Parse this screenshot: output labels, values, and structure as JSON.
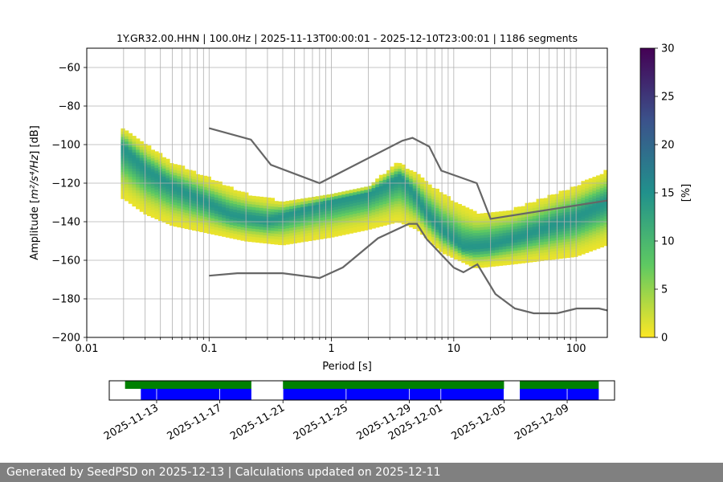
{
  "chart_data": {
    "type": "heatmap",
    "title": "1Y.GR32.00.HHN | 100.0Hz | 2025-11-13T00:00:01 - 2025-12-10T23:00:01 | 1186 segments",
    "xlabel": "Period [s]",
    "ylabel_main": "Amplitude [",
    "ylabel_math": "m²/s⁴/Hz",
    "ylabel_tail": "] [dB]",
    "x_scale": "log",
    "xlim": [
      0.01,
      180
    ],
    "ylim": [
      -200,
      -50
    ],
    "x_tick_labels": [
      "0.01",
      "0.1",
      "1",
      "10",
      "100"
    ],
    "y_ticks": [
      -200,
      -180,
      -160,
      -140,
      -120,
      -100,
      -80,
      -60
    ],
    "y_tick_labels": [
      "−200",
      "−180",
      "−160",
      "−140",
      "−120",
      "−100",
      "−80",
      "−60"
    ],
    "grid": true,
    "colorbar": {
      "label": "[%]",
      "range": [
        0,
        30
      ],
      "ticks": [
        0,
        5,
        10,
        15,
        20,
        25,
        30
      ],
      "tick_labels": [
        "0",
        "5",
        "10",
        "15",
        "20",
        "25",
        "30"
      ],
      "colors": [
        "#fde725",
        "#5ec962",
        "#21918c",
        "#3b528b",
        "#440154"
      ]
    },
    "mode_curve": [
      [
        0.02,
        -102
      ],
      [
        0.03,
        -113
      ],
      [
        0.05,
        -122
      ],
      [
        0.1,
        -131
      ],
      [
        0.15,
        -137
      ],
      [
        0.3,
        -140
      ],
      [
        0.6,
        -134
      ],
      [
        1.0,
        -130
      ],
      [
        2.0,
        -126
      ],
      [
        3.0,
        -120
      ],
      [
        3.7,
        -117
      ],
      [
        4.5,
        -124
      ],
      [
        6.0,
        -136
      ],
      [
        8.0,
        -145
      ],
      [
        12.0,
        -154
      ],
      [
        20.0,
        -153
      ],
      [
        40.0,
        -147
      ],
      [
        100.0,
        -138
      ],
      [
        180.0,
        -130
      ]
    ],
    "spread_upper": [
      [
        0.02,
        -92
      ],
      [
        0.03,
        -100
      ],
      [
        0.05,
        -110
      ],
      [
        0.1,
        -118
      ],
      [
        0.2,
        -126
      ],
      [
        0.4,
        -130
      ],
      [
        1.0,
        -126
      ],
      [
        2.0,
        -122
      ],
      [
        3.5,
        -110
      ],
      [
        5.0,
        -116
      ],
      [
        8.0,
        -126
      ],
      [
        15.0,
        -136
      ],
      [
        30.0,
        -134
      ],
      [
        100.0,
        -122
      ],
      [
        180.0,
        -114
      ]
    ],
    "spread_lower": [
      [
        0.02,
        -128
      ],
      [
        0.03,
        -136
      ],
      [
        0.05,
        -142
      ],
      [
        0.1,
        -146
      ],
      [
        0.2,
        -150
      ],
      [
        0.4,
        -152
      ],
      [
        1.0,
        -148
      ],
      [
        2.0,
        -144
      ],
      [
        3.5,
        -140
      ],
      [
        5.0,
        -144
      ],
      [
        8.0,
        -156
      ],
      [
        15.0,
        -164
      ],
      [
        30.0,
        -162
      ],
      [
        100.0,
        -158
      ],
      [
        180.0,
        -152
      ]
    ],
    "nhnm": [
      [
        0.1,
        -91.5
      ],
      [
        0.22,
        -97.4
      ],
      [
        0.32,
        -110.5
      ],
      [
        0.8,
        -120
      ],
      [
        3.8,
        -98
      ],
      [
        4.6,
        -96.5
      ],
      [
        6.3,
        -101
      ],
      [
        7.9,
        -113.5
      ],
      [
        15.4,
        -120
      ],
      [
        20,
        -138.5
      ],
      [
        180,
        -129
      ]
    ],
    "nlnm": [
      [
        0.1,
        -168
      ],
      [
        0.17,
        -166.7
      ],
      [
        0.4,
        -166.7
      ],
      [
        0.8,
        -169.2
      ],
      [
        1.24,
        -163.7
      ],
      [
        2.4,
        -148.6
      ],
      [
        4.3,
        -141.1
      ],
      [
        5.0,
        -141.1
      ],
      [
        6.0,
        -149
      ],
      [
        10,
        -163.8
      ],
      [
        12,
        -166.2
      ],
      [
        15.6,
        -162.1
      ],
      [
        21.9,
        -177.5
      ],
      [
        31.6,
        -185
      ],
      [
        45,
        -187.5
      ],
      [
        70,
        -187.5
      ],
      [
        101,
        -185
      ],
      [
        154,
        -185
      ],
      [
        180,
        -186
      ]
    ],
    "timeline": {
      "tick_labels": [
        "2025-11-13",
        "2025-11-17",
        "2025-11-21",
        "2025-11-25",
        "2025-11-29",
        "2025-12-01",
        "2025-12-05",
        "2025-12-09"
      ],
      "tick_dates": [
        "2025-11-13",
        "2025-11-17",
        "2025-11-21",
        "2025-11-25",
        "2025-11-29",
        "2025-12-01",
        "2025-12-05",
        "2025-12-09"
      ],
      "axis_start": "2025-11-10",
      "axis_end": "2025-12-12",
      "available": [
        [
          "2025-11-11",
          "2025-11-19"
        ],
        [
          "2025-11-21",
          "2025-12-05"
        ],
        [
          "2025-12-06",
          "2025-12-11"
        ]
      ],
      "used": [
        [
          "2025-11-12",
          "2025-11-19"
        ],
        [
          "2025-11-21",
          "2025-12-05"
        ],
        [
          "2025-12-06",
          "2025-12-11"
        ]
      ],
      "available_color": "#008000",
      "used_color": "#0000ff"
    }
  },
  "footer": {
    "text": "Generated by SeedPSD on 2025-12-13 | Calculations updated on 2025-12-11"
  }
}
